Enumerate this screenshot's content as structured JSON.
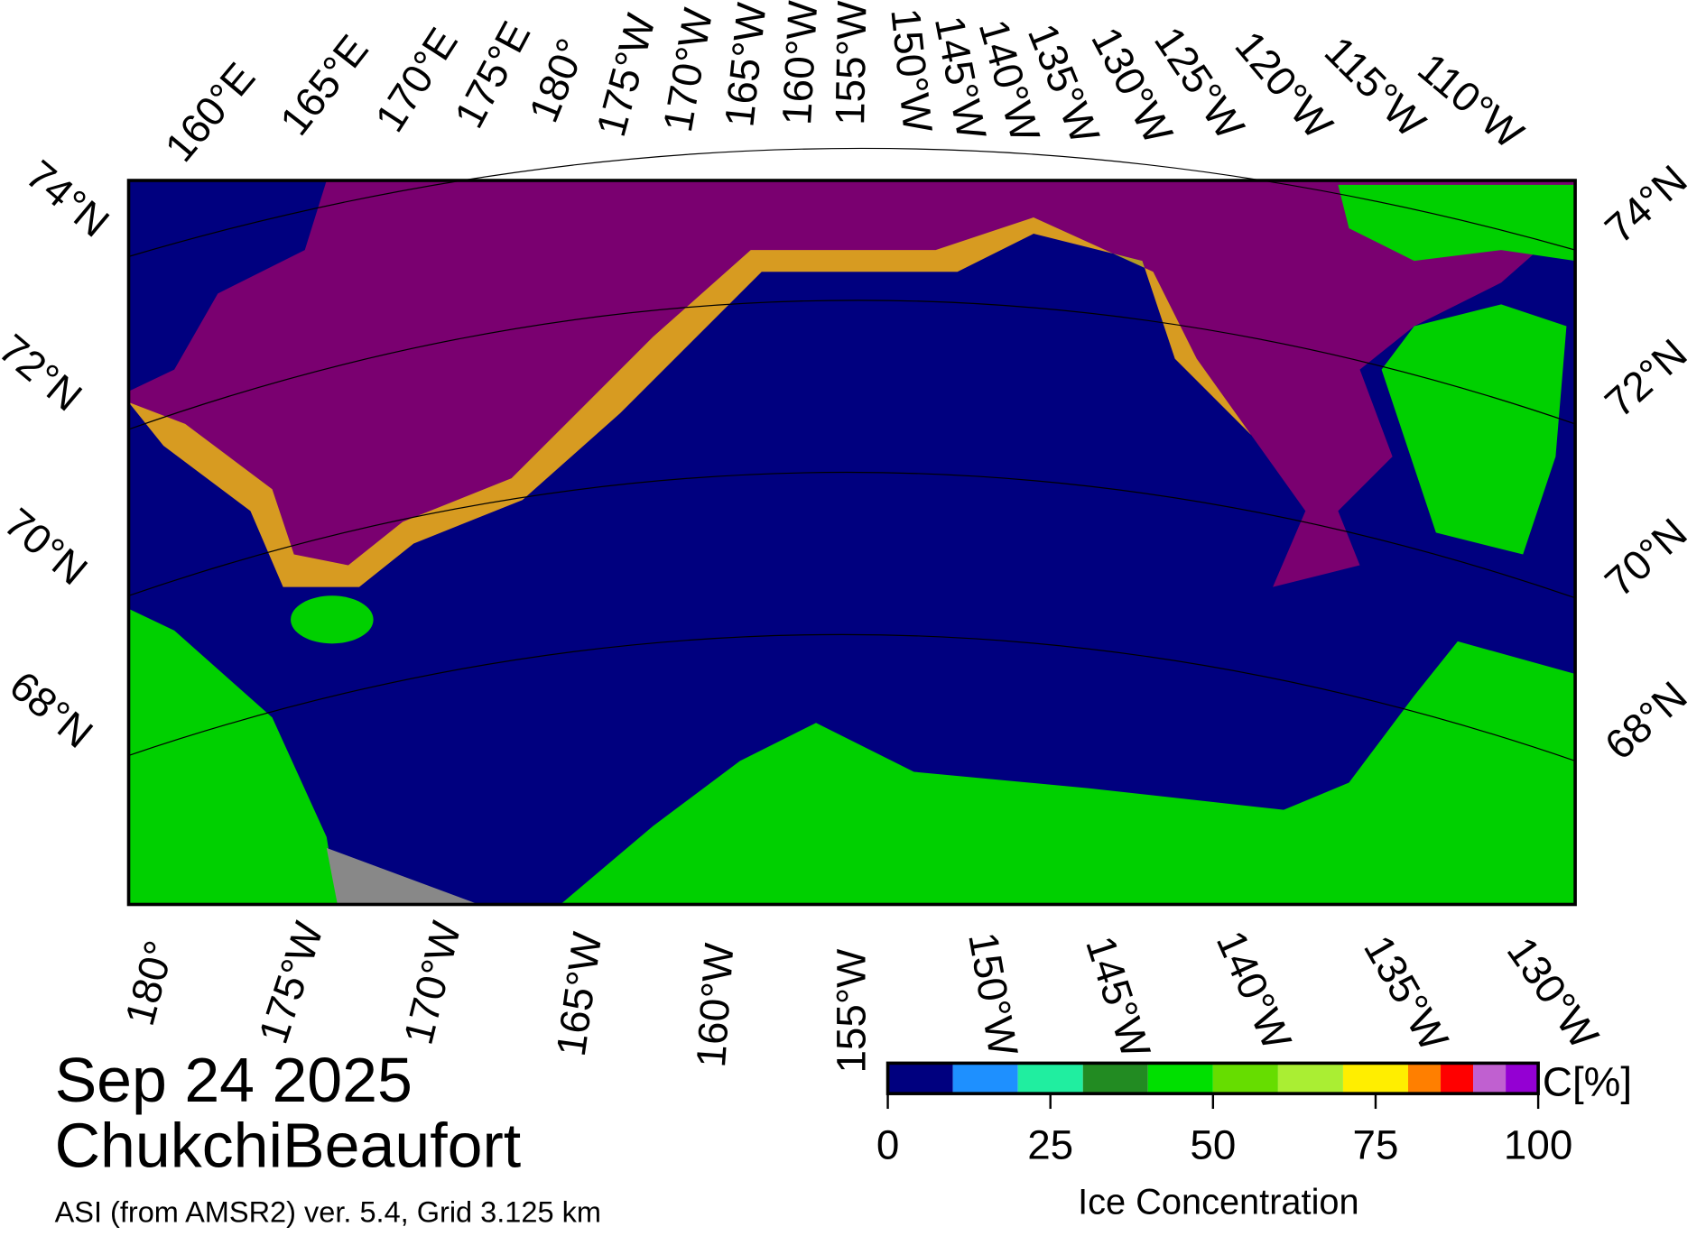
{
  "map": {
    "top_labels": [
      "160°E",
      "165°E",
      "170°E",
      "175°E",
      "180°",
      "175°W",
      "170°W",
      "165°W",
      "160°W",
      "155°W",
      "150°W",
      "145°W",
      "140°W",
      "135°W",
      "130°W",
      "125°W",
      "120°W",
      "115°W",
      "110°W"
    ],
    "bottom_labels": [
      "180°",
      "175°W",
      "170°W",
      "165°W",
      "160°W",
      "155°W",
      "150°W",
      "145°W",
      "140°W",
      "135°W",
      "130°W"
    ],
    "left_labels": [
      "74°N",
      "72°N",
      "70°N",
      "68°N"
    ],
    "right_labels": [
      "74°N",
      "72°N",
      "70°N",
      "68°N"
    ]
  },
  "title": {
    "date": "Sep 24 2025",
    "region": "ChukchiBeaufort",
    "subtitle": "ASI (from AMSR2) ver. 5.4,  Grid 3.125 km"
  },
  "colorbar": {
    "label": "Ice Concentration",
    "unit": "C[%]",
    "ticks": [
      0,
      25,
      50,
      75,
      100
    ],
    "bounds": [
      0,
      10,
      20,
      30,
      40,
      50,
      60,
      70,
      80,
      85,
      90,
      95,
      100
    ],
    "colors": [
      "#00007f",
      "#1e90ff",
      "#20eea0",
      "#228b22",
      "#00e000",
      "#66dd00",
      "#aaee33",
      "#ffee00",
      "#ff7f00",
      "#ff0000",
      "#c060d0",
      "#9400d3"
    ]
  }
}
